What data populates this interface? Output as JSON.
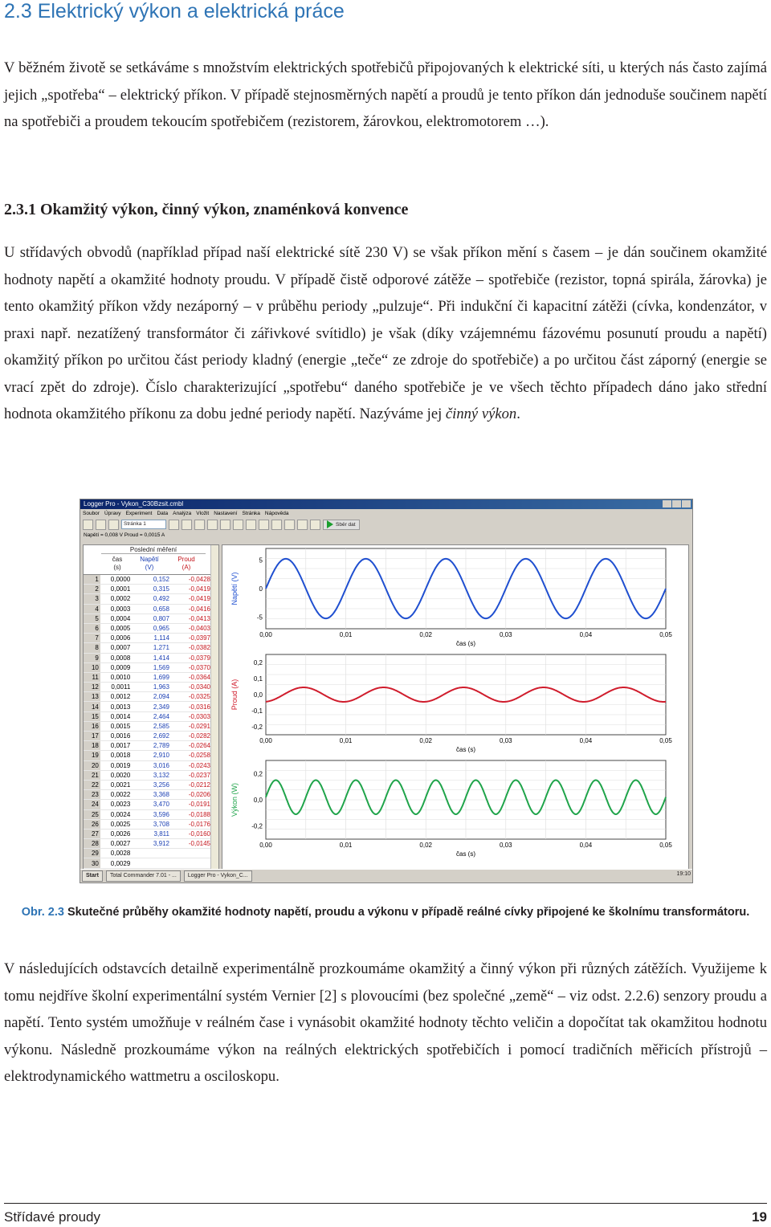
{
  "section_title": "2.3 Elektrický výkon a elektrická práce",
  "intro_paragraph": "V běžném životě se setkáváme s množstvím elektrických spotřebičů připojovaných k elektrické síti, u kterých nás často zajímá jejich „spotřeba“ – elektrický příkon. V případě stejnosměrných napětí a proudů je tento příkon dán jednoduše součinem napětí na spotřebiči a proudem tekoucím spotřebičem (rezistorem, žárovkou, elektromotorem …).",
  "subsection_title": "2.3.1 Okamžitý výkon, činný výkon, znaménková konvence",
  "main_paragraph": "U střídavých obvodů (například případ naší elektrické sítě 230 V) se však příkon mění s časem – je dán součinem okamžité hodnoty napětí a okamžité hodnoty proudu. V případě čistě odporové zátěže – spotřebiče (rezistor, topná spirála, žárovka) je tento okamžitý příkon vždy nezáporný – v průběhu periody „pulzuje“. Při indukční či kapacitní zátěži (cívka, kondenzátor, v praxi např. nezatížený transformátor či zářivkové svítidlo) je však (díky vzájemnému fázovému posunutí proudu a napětí) okamžitý příkon po určitou část periody kladný (energie „teče“ ze zdroje do spotřebiče) a po určitou část záporný (energie se vrací zpět do zdroje). Číslo charakterizující „spotřebu“ daného spotřebiče je ve všech těchto případech dáno jako střední hodnota okamžitého příkonu za dobu jedné periody napětí. Nazýváme jej",
  "main_paragraph_em": "činný výkon",
  "main_paragraph_end": ".",
  "screenshot": {
    "title": "Logger Pro - Vykon_C30Bzsit.cmbl",
    "menu": [
      "Soubor",
      "Úpravy",
      "Experiment",
      "Data",
      "Analýza",
      "Vložit",
      "Nastavení",
      "Stránka",
      "Nápověda"
    ],
    "page_select": "Stránka 1",
    "collect_label": "Sběr dat",
    "status": "Napětí = 0,008 V  Proud = 0,0015 A",
    "table": {
      "group_header": "Poslední měření",
      "col_time": "čas",
      "col_time_unit": "(s)",
      "col_voltage": "Napětí",
      "col_voltage_unit": "(V)",
      "col_current": "Proud",
      "col_current_unit": "(A)",
      "rows": [
        [
          "1",
          "0,0000",
          "0,152",
          "-0,0428"
        ],
        [
          "2",
          "0,0001",
          "0,315",
          "-0,0419"
        ],
        [
          "3",
          "0,0002",
          "0,492",
          "-0,0419"
        ],
        [
          "4",
          "0,0003",
          "0,658",
          "-0,0416"
        ],
        [
          "5",
          "0,0004",
          "0,807",
          "-0,0413"
        ],
        [
          "6",
          "0,0005",
          "0,965",
          "-0,0403"
        ],
        [
          "7",
          "0,0006",
          "1,114",
          "-0,0397"
        ],
        [
          "8",
          "0,0007",
          "1,271",
          "-0,0382"
        ],
        [
          "9",
          "0,0008",
          "1,414",
          "-0,0379"
        ],
        [
          "10",
          "0,0009",
          "1,569",
          "-0,0370"
        ],
        [
          "11",
          "0,0010",
          "1,699",
          "-0,0364"
        ],
        [
          "12",
          "0,0011",
          "1,963",
          "-0,0340"
        ],
        [
          "13",
          "0,0012",
          "2,094",
          "-0,0325"
        ],
        [
          "14",
          "0,0013",
          "2,349",
          "-0,0316"
        ],
        [
          "15",
          "0,0014",
          "2,464",
          "-0,0303"
        ],
        [
          "16",
          "0,0015",
          "2,585",
          "-0,0291"
        ],
        [
          "17",
          "0,0016",
          "2,692",
          "-0,0282"
        ],
        [
          "18",
          "0,0017",
          "2,789",
          "-0,0264"
        ],
        [
          "19",
          "0,0018",
          "2,910",
          "-0,0258"
        ],
        [
          "20",
          "0,0019",
          "3,016",
          "-0,0243"
        ],
        [
          "21",
          "0,0020",
          "3,132",
          "-0,0237"
        ],
        [
          "22",
          "0,0021",
          "3,256",
          "-0,0212"
        ],
        [
          "23",
          "0,0022",
          "3,368",
          "-0,0206"
        ],
        [
          "24",
          "0,0023",
          "3,470",
          "-0,0191"
        ],
        [
          "25",
          "0,0024",
          "3,596",
          "-0,0188"
        ],
        [
          "26",
          "0,0025",
          "3,708",
          "-0,0176"
        ],
        [
          "27",
          "0,0026",
          "3,811",
          "-0,0160"
        ],
        [
          "28",
          "0,0027",
          "3,912",
          "-0,0145"
        ],
        [
          "29",
          "0,0028",
          "",
          ""
        ],
        [
          "30",
          "0,0029",
          "",
          ""
        ]
      ]
    },
    "taskbar": {
      "start": "Start",
      "app1": "Total Commander 7.01 - ...",
      "app2": "Logger Pro - Vykon_C...",
      "clock": "19:10"
    }
  },
  "chart_data": [
    {
      "type": "line",
      "xlabel": "čas (s)",
      "ylabel": "Napětí (V)",
      "xlim": [
        0,
        0.05
      ],
      "ylim": [
        -7,
        7
      ],
      "yticks": [
        "5",
        "0",
        "-5"
      ],
      "xticks": [
        "0,00",
        "0,01",
        "0,02",
        "0,03",
        "0,04",
        "0,05"
      ],
      "series": [
        {
          "amplitude": 5.2,
          "period": 0.01,
          "phase_deg": 0,
          "offset": 0
        }
      ],
      "color": "#1f4fd0"
    },
    {
      "type": "line",
      "xlabel": "čas (s)",
      "ylabel": "Proud (A)",
      "xlim": [
        0,
        0.05
      ],
      "ylim": [
        -0.25,
        0.25
      ],
      "yticks": [
        "0,2",
        "0,1",
        "0,0",
        "-0,1",
        "-0,2"
      ],
      "xticks": [
        "0,00",
        "0,01",
        "0,02",
        "0,03",
        "0,04",
        "0,05"
      ],
      "series": [
        {
          "amplitude": 0.045,
          "period": 0.01,
          "phase_deg": -80,
          "offset": 0
        }
      ],
      "color": "#d01c2c"
    },
    {
      "type": "line",
      "xlabel": "čas (s)",
      "ylabel": "Výkon (W)",
      "xlim": [
        0,
        0.05
      ],
      "ylim": [
        -0.3,
        0.3
      ],
      "yticks": [
        "0,2",
        "0,0",
        "-0,2"
      ],
      "xticks": [
        "0,00",
        "0,01",
        "0,02",
        "0,03",
        "0,04",
        "0,05"
      ],
      "series": [
        {
          "amplitude": 0.13,
          "period": 0.005,
          "phase_deg": 0,
          "offset": 0.02
        }
      ],
      "color": "#1fa44a"
    }
  ],
  "caption_label": "Obr. 2.3",
  "caption_text": "Skutečné průběhy okamžité hodnoty napětí, proudu a výkonu v případě reálné cívky připojené ke školnímu transformátoru.",
  "closing_paragraph": "V následujících odstavcích detailně experimentálně prozkoumáme okamžitý a činný výkon při různých zátěžích. Využijeme k tomu nejdříve školní experimentální systém Vernier [2] s plovoucími (bez společné „země“ – viz odst. 2.2.6) senzory proudu a napětí. Tento systém umožňuje v reálném čase i vynásobit okamžité hodnoty těchto veličin a dopočítat tak okamžitou hodnotu výkonu. Následně prozkoumáme výkon na reálných elektrických spotřebičích i pomocí tradičních měřicích přístrojů – elektrodynamického wattmetru a osciloskopu.",
  "footer_left": "Střídavé proudy",
  "footer_page": "19"
}
